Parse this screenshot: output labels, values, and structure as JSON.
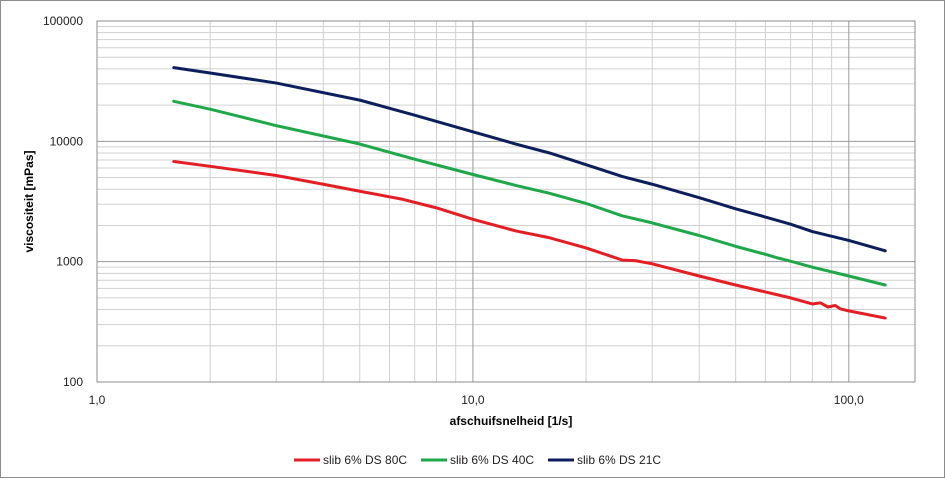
{
  "chart_data": {
    "type": "line",
    "xscale": "log",
    "yscale": "log",
    "xlabel": "afschuifsnelheid [1/s]",
    "ylabel": "viscositeit  [mPas]",
    "xlim": [
      1,
      150
    ],
    "ylim": [
      100,
      100000
    ],
    "x_tick_labels": [
      "1,0",
      "10,0",
      "100,0"
    ],
    "y_tick_labels": [
      "100",
      "1000",
      "10000",
      "100000"
    ],
    "grid": true,
    "legend_position": "bottom",
    "series": [
      {
        "name": "slib 6% DS 80C",
        "color": "#e31e24",
        "points": [
          [
            1.6,
            6800
          ],
          [
            2.0,
            6200
          ],
          [
            3.0,
            5200
          ],
          [
            4.0,
            4400
          ],
          [
            5.0,
            3850
          ],
          [
            6.5,
            3300
          ],
          [
            8.0,
            2800
          ],
          [
            10.0,
            2250
          ],
          [
            13.0,
            1800
          ],
          [
            16.0,
            1580
          ],
          [
            20.0,
            1300
          ],
          [
            25.0,
            1030
          ],
          [
            27.0,
            1020
          ],
          [
            30.0,
            960
          ],
          [
            40.0,
            760
          ],
          [
            50.0,
            640
          ],
          [
            60.0,
            560
          ],
          [
            70.0,
            500
          ],
          [
            80.0,
            445
          ],
          [
            84.0,
            455
          ],
          [
            88.0,
            420
          ],
          [
            92.0,
            432
          ],
          [
            95.0,
            405
          ],
          [
            100.0,
            390
          ],
          [
            125.0,
            340
          ]
        ]
      },
      {
        "name": "slib 6% DS 40C",
        "color": "#1ea84a",
        "points": [
          [
            1.6,
            21500
          ],
          [
            2.0,
            18500
          ],
          [
            3.0,
            13500
          ],
          [
            5.0,
            9500
          ],
          [
            7.0,
            7100
          ],
          [
            10.0,
            5300
          ],
          [
            13.0,
            4300
          ],
          [
            16.0,
            3700
          ],
          [
            20.0,
            3050
          ],
          [
            25.0,
            2400
          ],
          [
            30.0,
            2100
          ],
          [
            40.0,
            1650
          ],
          [
            50.0,
            1340
          ],
          [
            60.0,
            1150
          ],
          [
            65.0,
            1070
          ],
          [
            70.0,
            1010
          ],
          [
            80.0,
            900
          ],
          [
            100.0,
            760
          ],
          [
            125.0,
            640
          ]
        ]
      },
      {
        "name": "slib 6% DS 21C",
        "color": "#0c1f5c",
        "points": [
          [
            1.6,
            41000
          ],
          [
            2.0,
            37000
          ],
          [
            3.0,
            30500
          ],
          [
            5.0,
            22000
          ],
          [
            7.0,
            16500
          ],
          [
            10.0,
            12000
          ],
          [
            13.0,
            9500
          ],
          [
            16.0,
            8000
          ],
          [
            20.0,
            6400
          ],
          [
            25.0,
            5100
          ],
          [
            30.0,
            4400
          ],
          [
            40.0,
            3400
          ],
          [
            50.0,
            2750
          ],
          [
            60.0,
            2350
          ],
          [
            70.0,
            2050
          ],
          [
            80.0,
            1780
          ],
          [
            100.0,
            1500
          ],
          [
            125.0,
            1230
          ]
        ]
      }
    ]
  }
}
